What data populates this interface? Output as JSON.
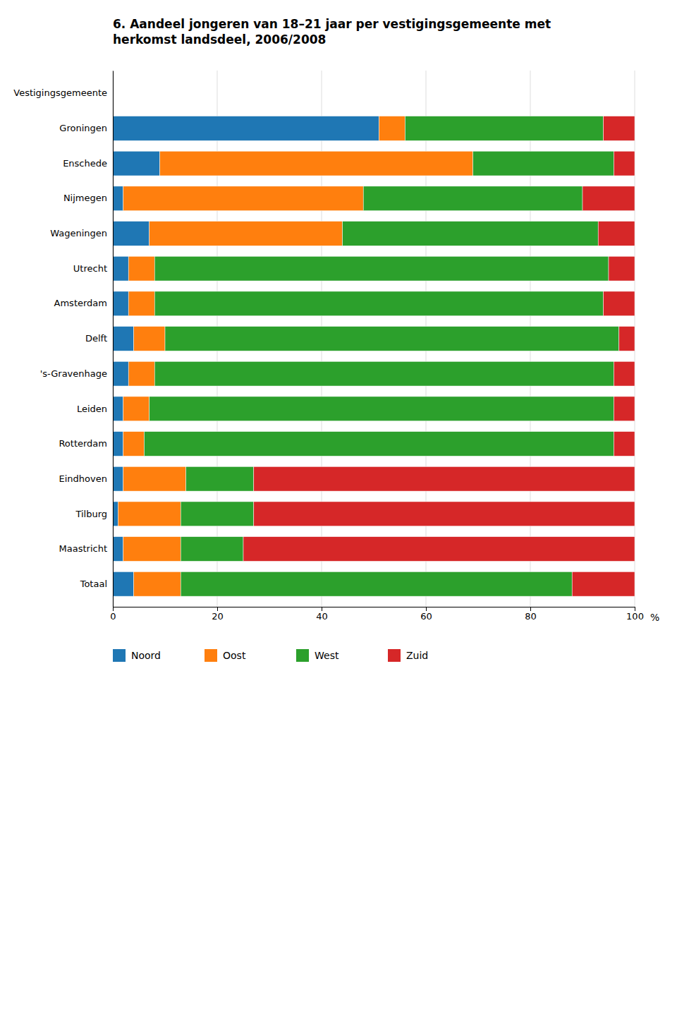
{
  "chart_data": {
    "type": "bar",
    "orientation": "horizontal",
    "stacked": true,
    "title": "6.  Aandeel jongeren van 18–21 jaar per vestigingsgemeente met\nherkomst landsdeel, 2006/2008",
    "x_label": "%",
    "categories": [
      "Vestigingsgemeente",
      "Groningen",
      "Enschede",
      "Nijmegen",
      "Wageningen",
      "Utrecht",
      "Amsterdam",
      "Delft",
      "'s-Gravenhage",
      "Leiden",
      "Rotterdam",
      "Eindhoven",
      "Tilburg",
      "Maastricht",
      "Totaal"
    ],
    "series": [
      {
        "name": "Noord",
        "values": [
          0,
          51,
          9,
          2,
          7,
          3,
          3,
          4,
          3,
          2,
          2,
          2,
          1,
          2,
          4
        ]
      },
      {
        "name": "Oost",
        "values": [
          0,
          5,
          60,
          46,
          37,
          5,
          5,
          6,
          5,
          5,
          4,
          12,
          12,
          11,
          9
        ]
      },
      {
        "name": "West",
        "values": [
          0,
          38,
          27,
          42,
          49,
          87,
          86,
          87,
          88,
          89,
          90,
          13,
          14,
          12,
          75
        ]
      },
      {
        "name": "Zuid",
        "values": [
          0,
          6,
          4,
          10,
          7,
          5,
          6,
          3,
          4,
          4,
          4,
          73,
          73,
          75,
          12
        ]
      }
    ],
    "xlim": [
      0,
      100
    ],
    "xticks": [
      0,
      20,
      40,
      60,
      80,
      100
    ],
    "grid": true,
    "legend": "bottom"
  }
}
